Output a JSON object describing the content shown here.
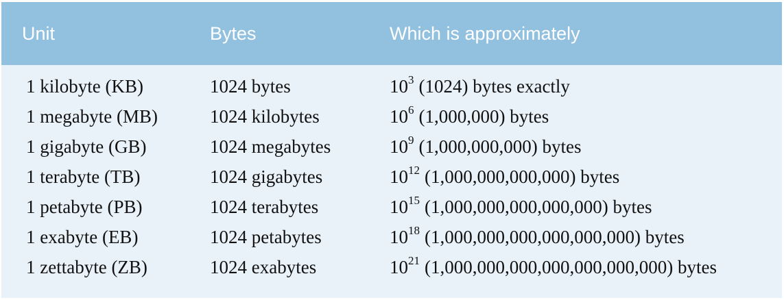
{
  "table": {
    "headers": {
      "unit": "Unit",
      "bytes": "Bytes",
      "approx": "Which is approximately"
    },
    "rows": [
      {
        "unit": "1 kilobyte (KB)",
        "bytes": "1024 bytes",
        "base": "10",
        "exp": "3",
        "approx": "(1024) bytes exactly"
      },
      {
        "unit": "1 megabyte (MB)",
        "bytes": "1024 kilobytes",
        "base": "10",
        "exp": "6",
        "approx": "(1,000,000) bytes"
      },
      {
        "unit": "1 gigabyte (GB)",
        "bytes": "1024 megabytes",
        "base": "10",
        "exp": "9",
        "approx": "(1,000,000,000) bytes"
      },
      {
        "unit": "1 terabyte (TB)",
        "bytes": "1024 gigabytes",
        "base": "10",
        "exp": "12",
        "approx": "(1,000,000,000,000) bytes"
      },
      {
        "unit": "1 petabyte (PB)",
        "bytes": "1024 terabytes",
        "base": "10",
        "exp": "15",
        "approx": "(1,000,000,000,000,000) bytes"
      },
      {
        "unit": "1 exabyte (EB)",
        "bytes": "1024 petabytes",
        "base": "10",
        "exp": "18",
        "approx": "(1,000,000,000,000,000,000) bytes"
      },
      {
        "unit": "1 zettabyte (ZB)",
        "bytes": "1024 exabytes",
        "base": "10",
        "exp": "21",
        "approx": "(1,000,000,000,000,000,000,000) bytes"
      }
    ]
  },
  "colors": {
    "header_bg": "#92c0df",
    "body_bg": "#e9f2f8",
    "header_text": "#ffffff",
    "body_text": "#111111"
  }
}
